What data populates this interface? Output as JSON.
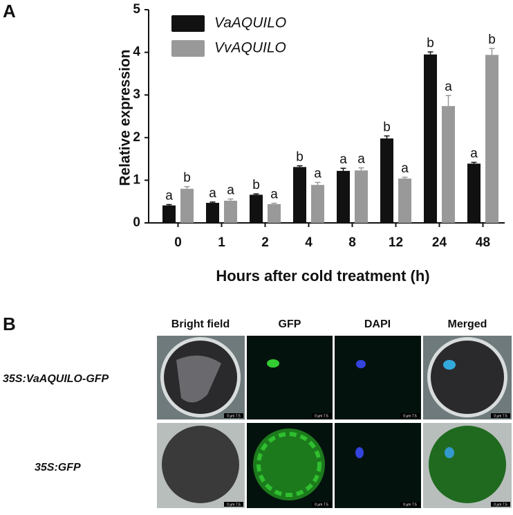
{
  "panels": {
    "a": "A",
    "b": "B"
  },
  "chart_data": {
    "type": "bar",
    "x_label": "Hours after cold treatment (h)",
    "y_label": "Relative expression",
    "categories": [
      "0",
      "1",
      "2",
      "4",
      "8",
      "12",
      "24",
      "48"
    ],
    "series": [
      {
        "name": "VaAQUILO",
        "color": "#111111",
        "values": [
          0.41,
          0.47,
          0.66,
          1.31,
          1.22,
          1.98,
          3.95,
          1.39
        ],
        "errors": [
          0.02,
          0.02,
          0.02,
          0.03,
          0.06,
          0.06,
          0.06,
          0.03
        ],
        "letters": [
          "a",
          "a",
          "b",
          "b",
          "a",
          "b",
          "b",
          "a"
        ]
      },
      {
        "name": "VvAQUILO",
        "color": "#999999",
        "values": [
          0.8,
          0.52,
          0.44,
          0.89,
          1.23,
          1.04,
          2.74,
          3.94
        ],
        "errors": [
          0.05,
          0.04,
          0.02,
          0.06,
          0.06,
          0.03,
          0.25,
          0.15
        ],
        "letters": [
          "b",
          "a",
          "a",
          "a",
          "a",
          "a",
          "a",
          "b"
        ]
      }
    ],
    "ylim": [
      0,
      5
    ],
    "yticks": [
      0,
      1,
      2,
      3,
      4,
      5
    ],
    "legend": "top-left",
    "grid": false
  },
  "micrographs": {
    "columns": [
      "Bright field",
      "GFP",
      "DAPI",
      "Merged"
    ],
    "rows": [
      "35S:VaAQUILO-GFP",
      "35S:GFP"
    ],
    "scale_label": "0 μm 7.5"
  }
}
